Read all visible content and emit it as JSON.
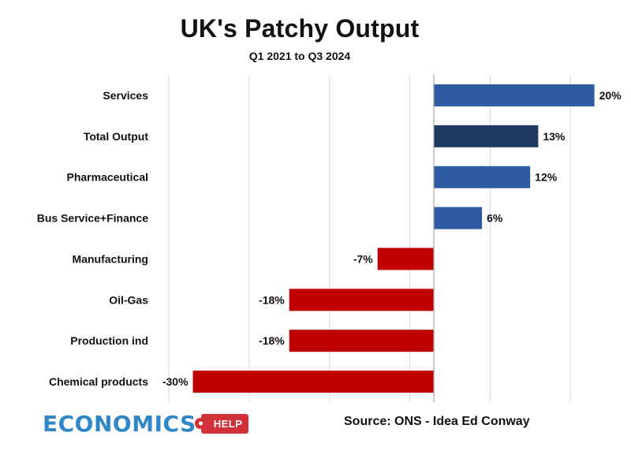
{
  "chart_data": {
    "type": "bar",
    "orientation": "horizontal",
    "title": "UK's Patchy Output",
    "subtitle": "Q1 2021 to Q3 2024",
    "categories": [
      "Services",
      "Total Output",
      "Pharmaceutical",
      "Bus Service+Finance",
      "Manufacturing",
      "Oil-Gas",
      "Production ind",
      "Chemical products"
    ],
    "values": [
      20,
      13,
      12,
      6,
      -7,
      -18,
      -18,
      -30
    ],
    "value_labels": [
      "20%",
      "13%",
      "12%",
      "6%",
      "-7%",
      "-18%",
      "-18%",
      "-30%"
    ],
    "unit": "%",
    "xlim": [
      -33,
      22
    ],
    "gridlines": [
      -33,
      -23,
      -13,
      -3,
      7,
      17
    ],
    "grid": true,
    "colors": {
      "positive": "#2e5ca2",
      "total": "#1f3864",
      "negative": "#c00000",
      "grid": "#d9d9d9",
      "axis": "#a6a6a6"
    }
  },
  "footer": {
    "logo_main": "ECONOMICS",
    "logo_help": "HELP",
    "source": "Source: ONS - Idea Ed Conway"
  }
}
